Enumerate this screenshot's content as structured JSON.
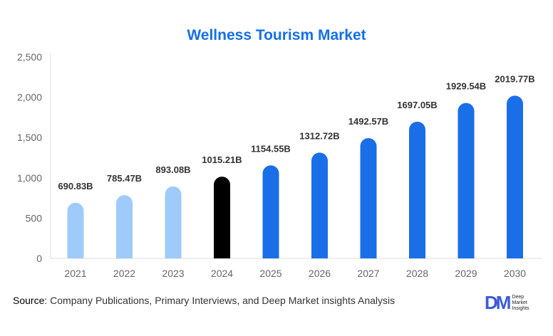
{
  "chart_data": {
    "type": "bar",
    "title": "Wellness Tourism Market",
    "categories": [
      "2021",
      "2022",
      "2023",
      "2024",
      "2025",
      "2026",
      "2027",
      "2028",
      "2029",
      "2030"
    ],
    "values": [
      690.83,
      785.47,
      893.08,
      1015.21,
      1154.55,
      1312.72,
      1492.57,
      1697.05,
      1929.54,
      2019.77
    ],
    "data_labels": [
      "690.83B",
      "785.47B",
      "893.08B",
      "1015.21B",
      "1154.55B",
      "1312.72B",
      "1492.57B",
      "1697.05B",
      "1929.54B",
      "2019.77B"
    ],
    "bar_colors": [
      "#9fcbfa",
      "#9fcbfa",
      "#9fcbfa",
      "#000000",
      "#1a6fe8",
      "#1a6fe8",
      "#1a6fe8",
      "#1a6fe8",
      "#1a6fe8",
      "#1a6fe8"
    ],
    "ylim": [
      0,
      2500
    ],
    "yticks": [
      "0",
      "500",
      "1,000",
      "1,500",
      "2,000",
      "2,500"
    ],
    "xlabel": "",
    "ylabel": "",
    "grid": false
  },
  "footer": {
    "source_label": "Source",
    "source_text": ": Company Publications, Primary Interviews, and Deep Market insights Analysis"
  },
  "logo": {
    "mark": "DM",
    "text": "Deep Market Insights"
  }
}
